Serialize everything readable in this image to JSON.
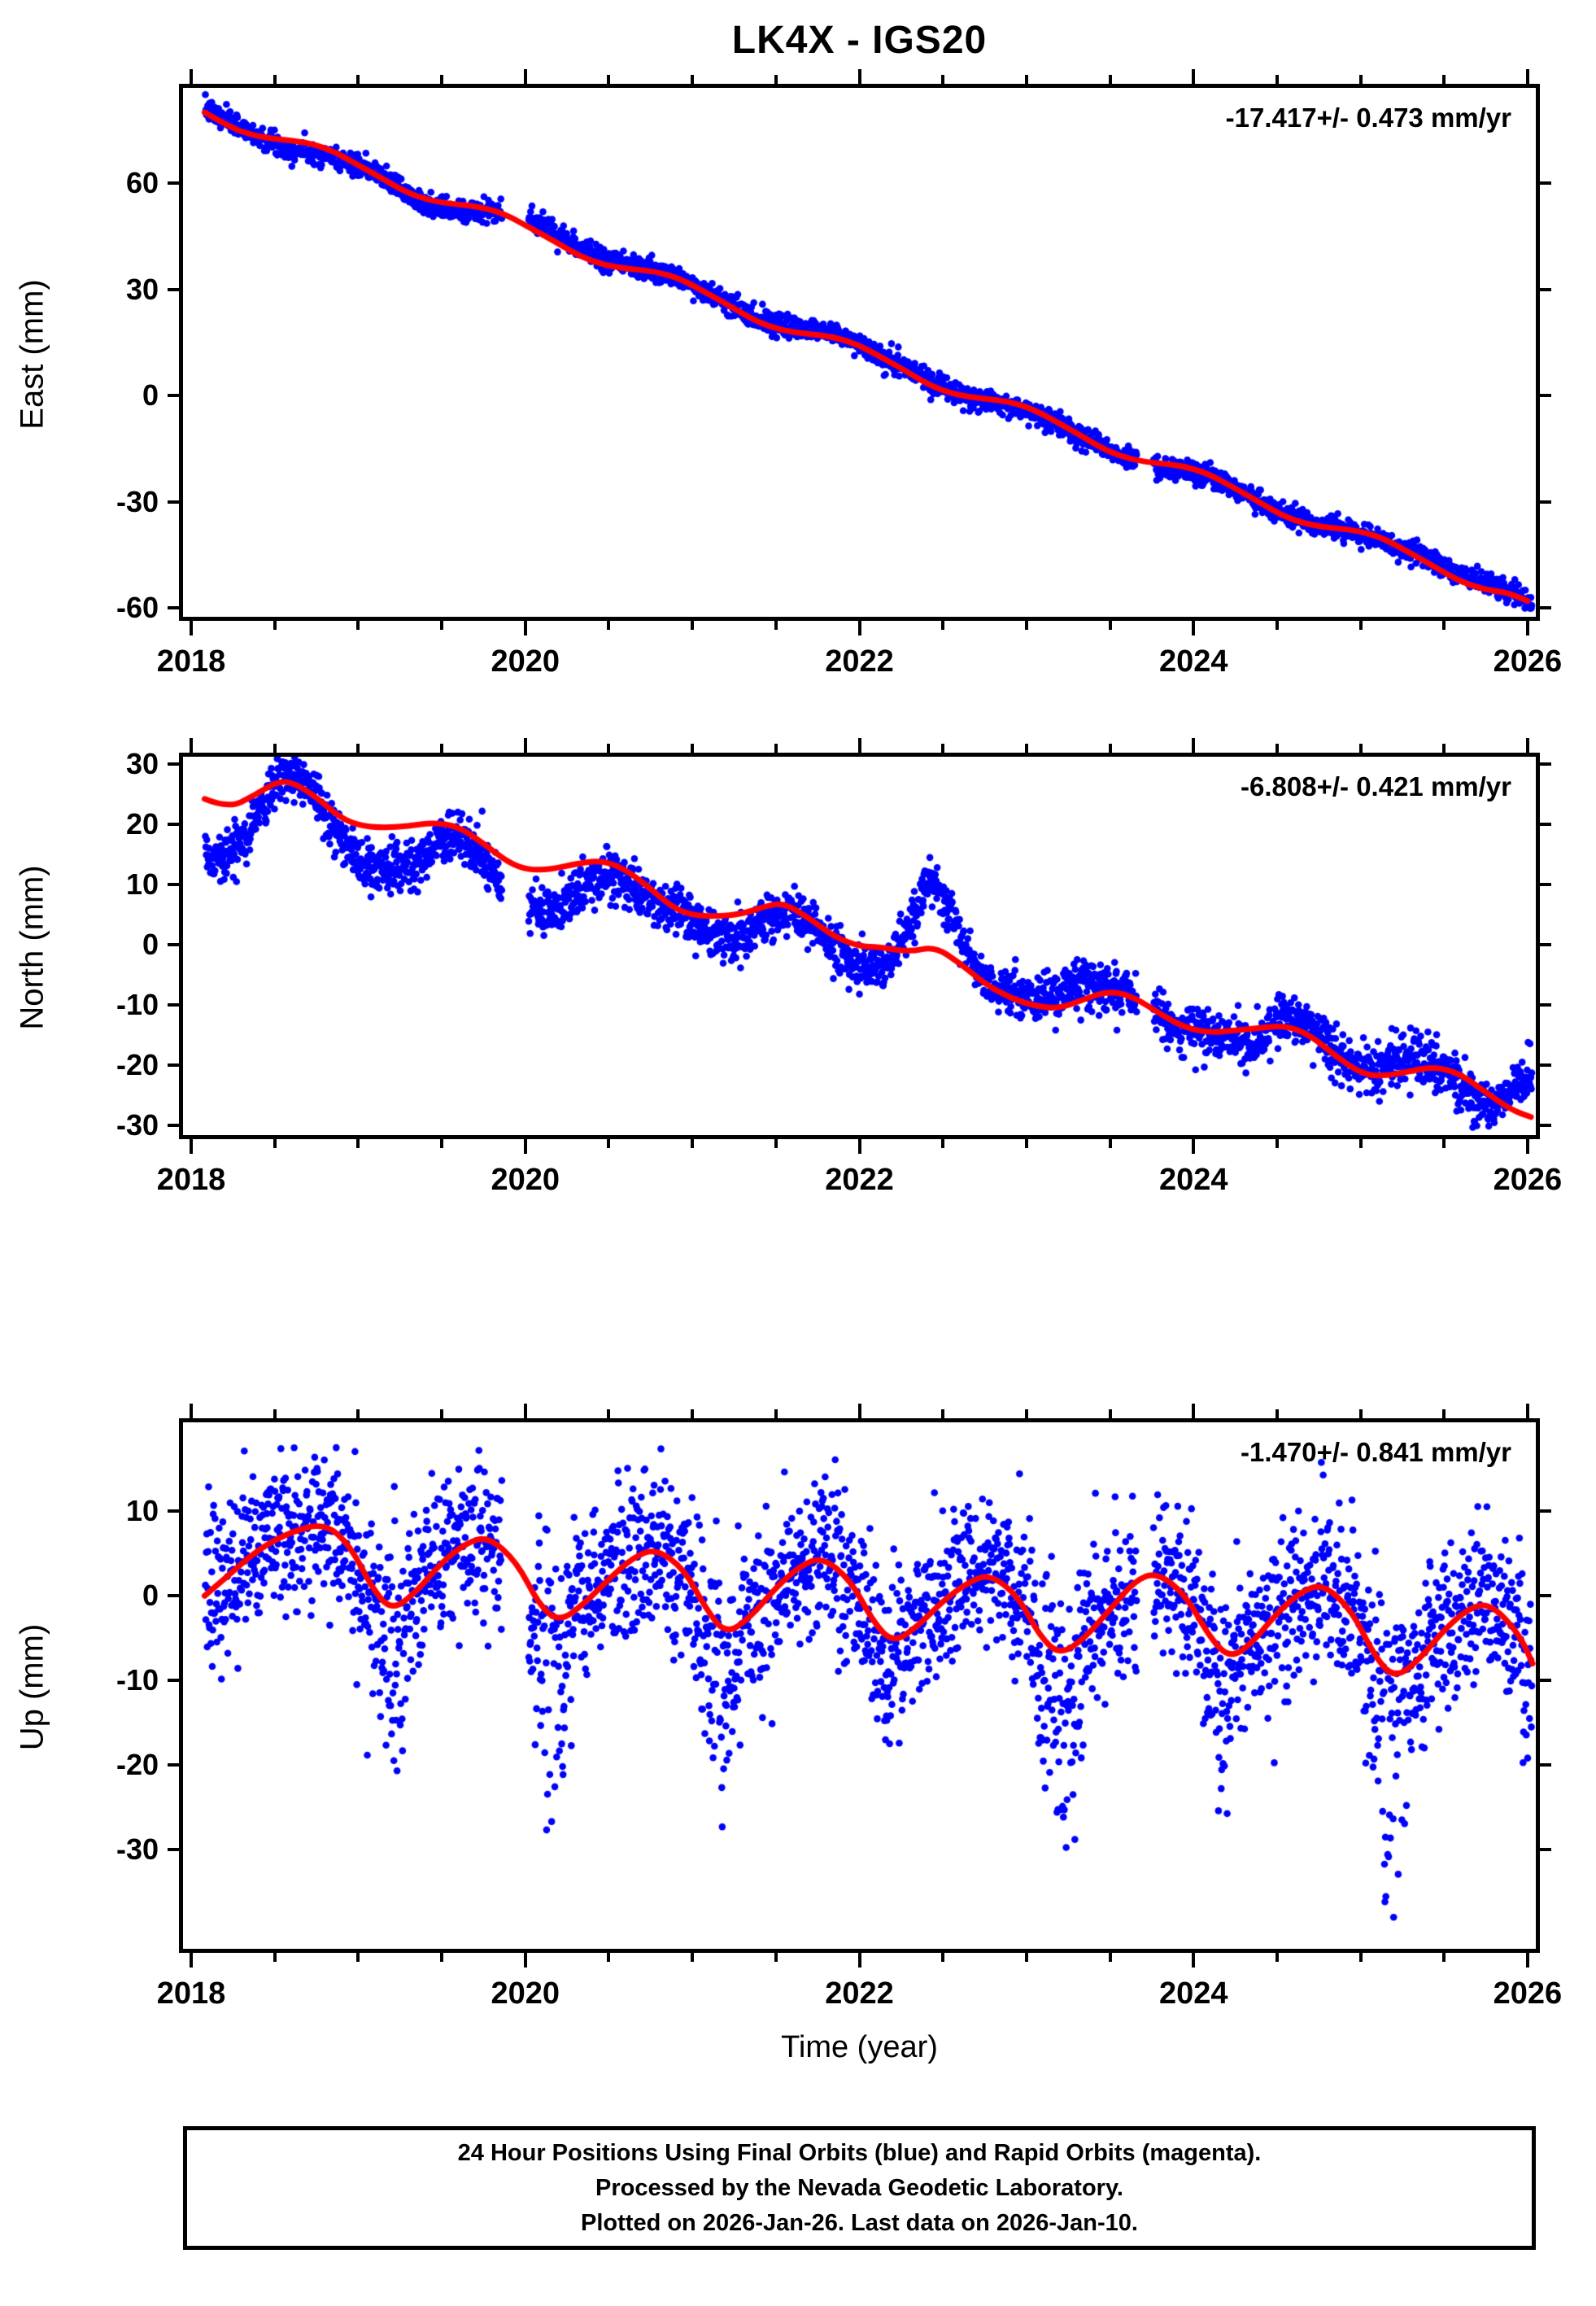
{
  "colors": {
    "points": "#0000ff",
    "model_line": "#ff0000",
    "frame": "#000000",
    "background": "#ffffff"
  },
  "caption": {
    "line1": "24 Hour Positions Using Final Orbits (blue) and Rapid Orbits (magenta).",
    "line2": "Processed by the Nevada Geodetic Laboratory.",
    "line3": "Plotted on 2026-Jan-26. Last data on 2026-Jan-10."
  },
  "chart_data": {
    "type": "scatter",
    "title": "LK4X - IGS20",
    "xlabel": "Time (year)",
    "x_range": [
      2017.951,
      2026.049
    ],
    "x_major_ticks": [
      2018,
      2020,
      2022,
      2024,
      2026
    ],
    "x_tick_labels": [
      "2018",
      "2020",
      "2022",
      "2024",
      "2026"
    ],
    "x_minor_step": 0.5,
    "data_start": 2018.085,
    "data_end": 2026.027,
    "data_gaps": [
      [
        2019.86,
        2020.02
      ],
      [
        2023.66,
        2023.76
      ]
    ],
    "legend": "blue = daily 24-hour final-orbit positions, red = smoothed model fit",
    "panels": [
      {
        "id": "east",
        "ylabel": "East (mm)",
        "rate_text": "-17.417+/- 0.473 mm/yr",
        "rate_mm_per_yr": -17.417,
        "rate_sigma": 0.473,
        "y_range": [
          -62.5,
          87.0
        ],
        "y_ticks": [
          60,
          30,
          0,
          -30,
          -60
        ],
        "scatter_sd": 1.5,
        "scatter_bias": [
          [
            2018.08,
            1
          ],
          [
            2018.25,
            1.5
          ],
          [
            2018.45,
            -0.5
          ],
          [
            2018.6,
            -2.5
          ],
          [
            2018.8,
            -2
          ],
          [
            2019.0,
            -0.5
          ],
          [
            2019.2,
            0.5
          ],
          [
            2019.4,
            -1
          ],
          [
            2019.55,
            -2
          ],
          [
            2019.75,
            -1
          ],
          [
            2019.95,
            1.5
          ],
          [
            2020.15,
            3
          ],
          [
            2020.35,
            2.5
          ],
          [
            2020.55,
            1
          ],
          [
            2020.75,
            0
          ],
          [
            2021.0,
            0.5
          ],
          [
            2021.2,
            0
          ],
          [
            2021.45,
            1
          ],
          [
            2021.65,
            1.5
          ],
          [
            2021.9,
            1
          ],
          [
            2022.1,
            0
          ],
          [
            2022.35,
            1
          ],
          [
            2022.6,
            0.5
          ],
          [
            2022.85,
            -1
          ],
          [
            2023.1,
            -0.5
          ],
          [
            2023.35,
            0.5
          ],
          [
            2023.6,
            0
          ],
          [
            2023.85,
            -1.5
          ],
          [
            2024.1,
            -0.5
          ],
          [
            2024.35,
            0
          ],
          [
            2024.6,
            0.5
          ],
          [
            2024.85,
            0
          ],
          [
            2025.1,
            -1
          ],
          [
            2025.35,
            1
          ],
          [
            2025.6,
            2
          ],
          [
            2025.8,
            1.5
          ],
          [
            2026.0,
            0
          ],
          [
            2026.03,
            -1
          ]
        ],
        "red_line": [
          [
            2018.08,
            80.1
          ],
          [
            2018.23,
            75.9
          ],
          [
            2018.38,
            73.4
          ],
          [
            2018.53,
            72.4
          ],
          [
            2018.68,
            71.7
          ],
          [
            2018.83,
            69.6
          ],
          [
            2018.98,
            65.7
          ],
          [
            2019.13,
            61.8
          ],
          [
            2019.28,
            57.6
          ],
          [
            2019.43,
            55.1
          ],
          [
            2019.58,
            54.1
          ],
          [
            2019.73,
            53.4
          ],
          [
            2019.88,
            51.3
          ],
          [
            2020.03,
            47.4
          ],
          [
            2020.18,
            43.5
          ],
          [
            2020.33,
            39.3
          ],
          [
            2020.48,
            36.8
          ],
          [
            2020.63,
            35.8
          ],
          [
            2020.78,
            35.1
          ],
          [
            2020.93,
            33.0
          ],
          [
            2021.08,
            29.2
          ],
          [
            2021.23,
            25.2
          ],
          [
            2021.38,
            21.0
          ],
          [
            2021.53,
            18.5
          ],
          [
            2021.68,
            17.5
          ],
          [
            2021.83,
            16.8
          ],
          [
            2021.98,
            14.7
          ],
          [
            2022.13,
            10.9
          ],
          [
            2022.28,
            6.9
          ],
          [
            2022.43,
            2.7
          ],
          [
            2022.58,
            0.2
          ],
          [
            2022.73,
            -0.8
          ],
          [
            2022.88,
            -1.5
          ],
          [
            2023.03,
            -3.6
          ],
          [
            2023.18,
            -7.4
          ],
          [
            2023.33,
            -11.4
          ],
          [
            2023.48,
            -15.6
          ],
          [
            2023.63,
            -18.1
          ],
          [
            2023.78,
            -19.1
          ],
          [
            2023.93,
            -19.8
          ],
          [
            2024.08,
            -21.9
          ],
          [
            2024.23,
            -25.7
          ],
          [
            2024.38,
            -29.7
          ],
          [
            2024.53,
            -33.9
          ],
          [
            2024.68,
            -36.4
          ],
          [
            2024.83,
            -37.4
          ],
          [
            2024.98,
            -38.1
          ],
          [
            2025.13,
            -40.2
          ],
          [
            2025.28,
            -44.0
          ],
          [
            2025.43,
            -48.0
          ],
          [
            2025.58,
            -52.2
          ],
          [
            2025.73,
            -54.7
          ],
          [
            2025.88,
            -55.7
          ],
          [
            2026.0,
            -58.0
          ]
        ],
        "winter_events": []
      },
      {
        "id": "north",
        "ylabel": "North (mm)",
        "rate_text": "-6.808+/- 0.421 mm/yr",
        "rate_mm_per_yr": -6.808,
        "rate_sigma": 0.421,
        "y_range": [
          -31.6,
          31.2
        ],
        "y_ticks": [
          30,
          20,
          10,
          0,
          -10,
          -20,
          -30
        ],
        "scatter_sd": 2.0,
        "scatter_bias": [
          [
            2018.08,
            -10
          ],
          [
            2018.2,
            -9
          ],
          [
            2018.35,
            -6
          ],
          [
            2018.5,
            0
          ],
          [
            2018.6,
            1.5
          ],
          [
            2018.75,
            0
          ],
          [
            2018.9,
            -4
          ],
          [
            2019.05,
            -6.5
          ],
          [
            2019.2,
            -7
          ],
          [
            2019.35,
            -6
          ],
          [
            2019.5,
            -3
          ],
          [
            2019.6,
            -1.5
          ],
          [
            2019.75,
            -3
          ],
          [
            2019.9,
            -5
          ],
          [
            2020.1,
            -7
          ],
          [
            2020.25,
            -6
          ],
          [
            2020.4,
            -3.5
          ],
          [
            2020.5,
            -2
          ],
          [
            2020.65,
            -2.5
          ],
          [
            2020.8,
            -1.5
          ],
          [
            2020.95,
            0.5
          ],
          [
            2021.1,
            -2.5
          ],
          [
            2021.25,
            -4.5
          ],
          [
            2021.4,
            -3
          ],
          [
            2021.55,
            -1
          ],
          [
            2021.7,
            0
          ],
          [
            2021.85,
            -2
          ],
          [
            2022.0,
            -3.5
          ],
          [
            2022.15,
            -3
          ],
          [
            2022.3,
            4
          ],
          [
            2022.42,
            11.5
          ],
          [
            2022.5,
            9
          ],
          [
            2022.6,
            5
          ],
          [
            2022.7,
            1
          ],
          [
            2022.85,
            0.5
          ],
          [
            2023.0,
            1
          ],
          [
            2023.15,
            1.5
          ],
          [
            2023.3,
            3
          ],
          [
            2023.45,
            1
          ],
          [
            2023.6,
            0.5
          ],
          [
            2023.75,
            0
          ],
          [
            2023.9,
            -1
          ],
          [
            2024.05,
            0
          ],
          [
            2024.2,
            -1
          ],
          [
            2024.35,
            -2.5
          ],
          [
            2024.5,
            0.5
          ],
          [
            2024.65,
            1.5
          ],
          [
            2024.8,
            1
          ],
          [
            2024.95,
            0
          ],
          [
            2025.1,
            1.5
          ],
          [
            2025.25,
            3
          ],
          [
            2025.4,
            1
          ],
          [
            2025.55,
            -1.5
          ],
          [
            2025.7,
            -3
          ],
          [
            2025.85,
            1
          ],
          [
            2025.95,
            5
          ],
          [
            2026.03,
            7
          ]
        ],
        "red_line": [
          [
            2018.08,
            24.2
          ],
          [
            2018.22,
            22.6
          ],
          [
            2018.38,
            24.8
          ],
          [
            2018.52,
            27.2
          ],
          [
            2018.62,
            26.8
          ],
          [
            2018.75,
            24.5
          ],
          [
            2018.88,
            21.3
          ],
          [
            2019.0,
            19.8
          ],
          [
            2019.15,
            19.4
          ],
          [
            2019.3,
            19.7
          ],
          [
            2019.45,
            20.3
          ],
          [
            2019.6,
            19.6
          ],
          [
            2019.75,
            16.8
          ],
          [
            2019.9,
            13.6
          ],
          [
            2020.02,
            12.4
          ],
          [
            2020.15,
            12.5
          ],
          [
            2020.3,
            13.4
          ],
          [
            2020.45,
            14.0
          ],
          [
            2020.58,
            12.8
          ],
          [
            2020.72,
            10.0
          ],
          [
            2020.88,
            6.2
          ],
          [
            2021.0,
            4.9
          ],
          [
            2021.15,
            4.7
          ],
          [
            2021.3,
            5.1
          ],
          [
            2021.45,
            6.5
          ],
          [
            2021.55,
            6.9
          ],
          [
            2021.7,
            4.4
          ],
          [
            2021.85,
            1.3
          ],
          [
            2022.0,
            -0.3
          ],
          [
            2022.12,
            -0.4
          ],
          [
            2022.3,
            -1.2
          ],
          [
            2022.45,
            -0.3
          ],
          [
            2022.6,
            -3.0
          ],
          [
            2022.75,
            -6.5
          ],
          [
            2022.9,
            -8.8
          ],
          [
            2023.05,
            -10.2
          ],
          [
            2023.2,
            -10.6
          ],
          [
            2023.35,
            -9.0
          ],
          [
            2023.5,
            -7.6
          ],
          [
            2023.65,
            -8.8
          ],
          [
            2023.8,
            -11.5
          ],
          [
            2023.95,
            -13.8
          ],
          [
            2024.1,
            -14.6
          ],
          [
            2024.25,
            -14.2
          ],
          [
            2024.4,
            -13.8
          ],
          [
            2024.55,
            -13.4
          ],
          [
            2024.7,
            -15.0
          ],
          [
            2024.85,
            -18.5
          ],
          [
            2025.0,
            -21.3
          ],
          [
            2025.12,
            -21.9
          ],
          [
            2025.3,
            -21.0
          ],
          [
            2025.45,
            -20.2
          ],
          [
            2025.6,
            -21.5
          ],
          [
            2025.75,
            -24.5
          ],
          [
            2025.9,
            -27.4
          ],
          [
            2026.02,
            -28.6
          ]
        ],
        "winter_events": []
      },
      {
        "id": "up",
        "ylabel": "Up (mm)",
        "rate_text": "-1.470+/- 0.841 mm/yr",
        "rate_mm_per_yr": -1.47,
        "rate_sigma": 0.841,
        "y_range": [
          -41.7,
          20.5
        ],
        "y_ticks": [
          10,
          0,
          -10,
          -20,
          -30
        ],
        "scatter_sd": 4.6,
        "scatter_bias": [
          [
            2018.08,
            0
          ],
          [
            2026.03,
            0
          ]
        ],
        "red_line": [
          [
            2018.08,
            0.0
          ],
          [
            2018.2,
            2.0
          ],
          [
            2018.4,
            5.5
          ],
          [
            2018.6,
            7.6
          ],
          [
            2018.8,
            8.6
          ],
          [
            2018.95,
            6.0
          ],
          [
            2019.08,
            1.0
          ],
          [
            2019.2,
            -1.8
          ],
          [
            2019.35,
            0.5
          ],
          [
            2019.5,
            4.0
          ],
          [
            2019.65,
            6.3
          ],
          [
            2019.78,
            7.0
          ],
          [
            2019.95,
            4.0
          ],
          [
            2020.08,
            -1.0
          ],
          [
            2020.2,
            -3.1
          ],
          [
            2020.35,
            -1.0
          ],
          [
            2020.5,
            2.0
          ],
          [
            2020.65,
            4.6
          ],
          [
            2020.78,
            5.6
          ],
          [
            2020.95,
            3.2
          ],
          [
            2021.08,
            -1.5
          ],
          [
            2021.2,
            -4.6
          ],
          [
            2021.35,
            -2.5
          ],
          [
            2021.5,
            1.0
          ],
          [
            2021.65,
            3.6
          ],
          [
            2021.78,
            4.6
          ],
          [
            2021.95,
            1.8
          ],
          [
            2022.08,
            -3.0
          ],
          [
            2022.2,
            -5.6
          ],
          [
            2022.35,
            -3.6
          ],
          [
            2022.5,
            -0.6
          ],
          [
            2022.65,
            1.6
          ],
          [
            2022.78,
            2.6
          ],
          [
            2022.95,
            0.0
          ],
          [
            2023.08,
            -4.8
          ],
          [
            2023.2,
            -7.0
          ],
          [
            2023.35,
            -5.0
          ],
          [
            2023.5,
            -1.6
          ],
          [
            2023.65,
            1.8
          ],
          [
            2023.78,
            2.8
          ],
          [
            2023.95,
            0.2
          ],
          [
            2024.1,
            -5.0
          ],
          [
            2024.22,
            -7.4
          ],
          [
            2024.35,
            -5.6
          ],
          [
            2024.5,
            -2.0
          ],
          [
            2024.65,
            0.6
          ],
          [
            2024.78,
            1.4
          ],
          [
            2024.95,
            -1.8
          ],
          [
            2025.08,
            -7.0
          ],
          [
            2025.2,
            -9.8
          ],
          [
            2025.35,
            -7.6
          ],
          [
            2025.5,
            -4.0
          ],
          [
            2025.65,
            -1.4
          ],
          [
            2025.78,
            -0.9
          ],
          [
            2025.95,
            -4.5
          ],
          [
            2026.03,
            -8.0
          ]
        ],
        "winter_events": [
          {
            "start": 2018.98,
            "end": 2019.35,
            "depth": 16
          },
          {
            "start": 2019.98,
            "end": 2020.3,
            "depth": 22
          },
          {
            "start": 2020.98,
            "end": 2021.3,
            "depth": 17
          },
          {
            "start": 2022.0,
            "end": 2022.28,
            "depth": 8
          },
          {
            "start": 2023.02,
            "end": 2023.38,
            "depth": 23
          },
          {
            "start": 2024.0,
            "end": 2024.3,
            "depth": 13
          },
          {
            "start": 2025.02,
            "end": 2025.35,
            "depth": 24
          },
          {
            "start": 2025.95,
            "end": 2026.03,
            "depth": 7
          }
        ]
      }
    ]
  }
}
